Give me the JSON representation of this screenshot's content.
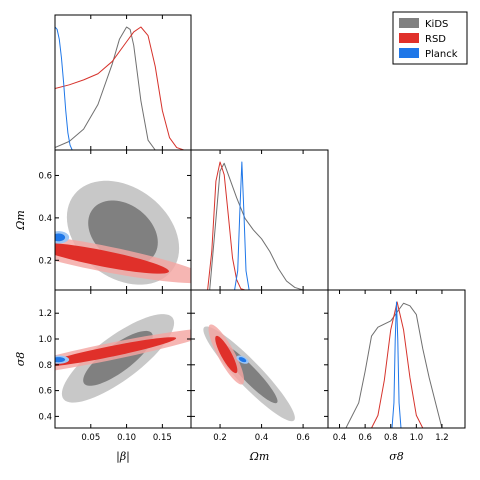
{
  "chart_data": {
    "type": "triangle-corner-plot",
    "parameters": [
      {
        "key": "beta",
        "label": "|β|",
        "range": [
          0,
          0.19
        ],
        "ticks": [
          "0.05",
          "0.10",
          "0.15"
        ],
        "tick_values": [
          0.05,
          0.1,
          0.15
        ]
      },
      {
        "key": "omega_m",
        "label": "Ωm",
        "range": [
          0.06,
          0.72
        ],
        "ticks": [
          "0.2",
          "0.4",
          "0.6"
        ],
        "tick_values": [
          0.2,
          0.4,
          0.6
        ],
        "y_ticks": [
          "0.2",
          "0.4",
          "0.6"
        ],
        "y_tick_values": [
          0.2,
          0.4,
          0.6
        ]
      },
      {
        "key": "sigma_8",
        "label": "σ8",
        "range": [
          0.31,
          1.38
        ],
        "ticks": [
          "0.4",
          "0.6",
          "0.8",
          "1.0",
          "1.2"
        ],
        "tick_values": [
          0.4,
          0.6,
          0.8,
          1.0,
          1.2
        ],
        "y_ticks": [
          "0.4",
          "0.6",
          "0.8",
          "1.0",
          "1.2"
        ],
        "y_tick_values": [
          0.4,
          0.6,
          0.8,
          1.0,
          1.2
        ]
      }
    ],
    "legend": {
      "position": "top-right",
      "entries": [
        {
          "name": "KiDS",
          "color": "#808080"
        },
        {
          "name": "RSD",
          "color": "#e0302a"
        },
        {
          "name": "Planck",
          "color": "#1f77e8"
        }
      ]
    },
    "series": [
      {
        "name": "KiDS",
        "line_color": "#707070",
        "fill_outer": "#c8c8c8",
        "fill_inner": "#808080",
        "marginals": {
          "beta": {
            "x": [
              0.0,
              0.02,
              0.04,
              0.06,
              0.08,
              0.09,
              0.1,
              0.105,
              0.11,
              0.12,
              0.13,
              0.14
            ],
            "y": [
              0.02,
              0.07,
              0.17,
              0.37,
              0.7,
              0.9,
              1.0,
              0.98,
              0.85,
              0.4,
              0.08,
              0.0
            ]
          },
          "omega_m": {
            "x": [
              0.15,
              0.18,
              0.2,
              0.22,
              0.24,
              0.28,
              0.32,
              0.36,
              0.4,
              0.44,
              0.48,
              0.52,
              0.56,
              0.6
            ],
            "y": [
              0.0,
              0.55,
              0.93,
              0.99,
              0.9,
              0.72,
              0.56,
              0.47,
              0.4,
              0.3,
              0.17,
              0.07,
              0.02,
              0.0
            ]
          },
          "sigma_8": {
            "x": [
              0.45,
              0.55,
              0.6,
              0.65,
              0.7,
              0.8,
              0.85,
              0.9,
              0.95,
              1.0,
              1.05,
              1.1,
              1.2
            ],
            "y": [
              0.0,
              0.2,
              0.45,
              0.73,
              0.8,
              0.85,
              0.92,
              0.99,
              0.97,
              0.9,
              0.63,
              0.4,
              0.0
            ]
          }
        },
        "contours": {
          "omega_m_vs_beta": {
            "center": [
              0.095,
              0.33
            ],
            "sx": 0.032,
            "sy": 0.1,
            "rho": -0.3
          },
          "sigma_8_vs_beta": {
            "center": [
              0.088,
              0.85
            ],
            "sx": 0.032,
            "sy": 0.14,
            "rho": 0.8
          },
          "sigma_8_vs_omega_m": {
            "center": [
              0.34,
              0.73
            ],
            "sx": 0.09,
            "sy": 0.15,
            "rho": -0.93
          }
        }
      },
      {
        "name": "RSD",
        "line_color": "#d6332c",
        "fill_outer": "#f4a6a2",
        "fill_inner": "#e0302a",
        "marginals": {
          "beta": {
            "x": [
              0.0,
              0.02,
              0.04,
              0.06,
              0.08,
              0.1,
              0.11,
              0.12,
              0.13,
              0.14,
              0.15,
              0.16,
              0.17,
              0.18
            ],
            "y": [
              0.5,
              0.53,
              0.57,
              0.62,
              0.72,
              0.88,
              0.96,
              1.0,
              0.93,
              0.68,
              0.32,
              0.1,
              0.02,
              0.0
            ]
          },
          "omega_m": {
            "x": [
              0.14,
              0.16,
              0.18,
              0.2,
              0.22,
              0.24,
              0.26,
              0.28,
              0.3,
              0.32
            ],
            "y": [
              0.0,
              0.3,
              0.85,
              1.0,
              0.9,
              0.58,
              0.25,
              0.08,
              0.01,
              0.0
            ]
          },
          "sigma_8": {
            "x": [
              0.65,
              0.7,
              0.75,
              0.8,
              0.85,
              0.9,
              0.95,
              1.0,
              1.05
            ],
            "y": [
              0.0,
              0.1,
              0.38,
              0.78,
              1.0,
              0.78,
              0.4,
              0.1,
              0.0
            ]
          }
        },
        "contours": {
          "omega_m_vs_beta": {
            "center": [
              0.065,
              0.21
            ],
            "sx": 0.062,
            "sy": 0.048,
            "rho": -0.85
          },
          "sigma_8_vs_beta": {
            "center": [
              0.075,
              0.9
            ],
            "sx": 0.062,
            "sy": 0.075,
            "rho": 0.93
          },
          "sigma_8_vs_omega_m": {
            "center": [
              0.23,
              0.88
            ],
            "sx": 0.035,
            "sy": 0.095,
            "rho": -0.85
          }
        }
      },
      {
        "name": "Planck",
        "line_color": "#1f77e8",
        "fill_outer": "#9cc6f5",
        "fill_inner": "#1f77e8",
        "marginals": {
          "beta": {
            "x": [
              0.0,
              0.003,
              0.006,
              0.009,
              0.012,
              0.015,
              0.018,
              0.021,
              0.024
            ],
            "y": [
              1.0,
              0.98,
              0.9,
              0.75,
              0.55,
              0.32,
              0.14,
              0.04,
              0.0
            ]
          },
          "omega_m": {
            "x": [
              0.27,
              0.285,
              0.295,
              0.305,
              0.315,
              0.325,
              0.34
            ],
            "y": [
              0.0,
              0.15,
              0.6,
              1.0,
              0.6,
              0.15,
              0.0
            ]
          },
          "sigma_8": {
            "x": [
              0.81,
              0.825,
              0.835,
              0.845,
              0.855,
              0.865,
              0.88
            ],
            "y": [
              0.0,
              0.2,
              0.7,
              1.0,
              0.7,
              0.2,
              0.0
            ]
          }
        },
        "contours": {
          "omega_m_vs_beta": {
            "center": [
              0.005,
              0.308
            ],
            "sx": 0.006,
            "sy": 0.012,
            "rho": 0.0
          },
          "sigma_8_vs_beta": {
            "center": [
              0.005,
              0.84
            ],
            "sx": 0.006,
            "sy": 0.013,
            "rho": 0.0
          },
          "sigma_8_vs_omega_m": {
            "center": [
              0.308,
              0.84
            ],
            "sx": 0.012,
            "sy": 0.013,
            "rho": -0.5
          }
        }
      }
    ]
  }
}
